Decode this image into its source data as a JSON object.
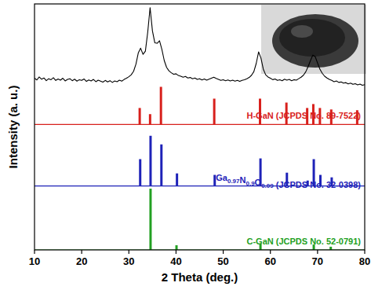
{
  "chart_data": {
    "type": "line",
    "x_label": "2 Theta (deg.)",
    "y_label": "Intensity (a. u.)",
    "xlim": [
      10,
      80
    ],
    "xticks": [
      10,
      20,
      30,
      40,
      50,
      60,
      70,
      80
    ],
    "ylim": [
      0,
      100
    ],
    "tick_labels": "x",
    "series": [
      {
        "type": "line",
        "color": "#000000",
        "x": [
          10,
          10.5,
          11,
          11.5,
          12,
          12.5,
          13,
          13.5,
          14,
          14.5,
          15,
          15.5,
          16,
          16.5,
          17,
          17.5,
          18,
          18.5,
          19,
          19.5,
          20,
          20.5,
          21,
          21.5,
          22,
          22.5,
          23,
          23.5,
          24,
          24.5,
          25,
          25.5,
          26,
          26.5,
          27,
          27.5,
          28,
          28.5,
          29,
          29.5,
          30,
          30.5,
          31,
          31.5,
          32,
          32.5,
          33,
          33.5,
          34,
          34.5,
          35,
          35.5,
          36,
          36.5,
          37,
          37.5,
          38,
          38.5,
          39,
          39.5,
          40,
          40.5,
          41,
          41.5,
          42,
          42.5,
          43,
          43.5,
          44,
          44.5,
          45,
          45.5,
          46,
          46.5,
          47,
          47.5,
          48,
          48.5,
          49,
          49.5,
          50,
          50.5,
          51,
          51.5,
          52,
          52.5,
          53,
          53.5,
          54,
          54.5,
          55,
          55.5,
          56,
          56.5,
          57,
          57.5,
          58,
          58.5,
          59,
          59.5,
          60,
          60.5,
          61,
          61.5,
          62,
          62.5,
          63,
          63.5,
          64,
          64.5,
          65,
          65.5,
          66,
          66.5,
          67,
          67.5,
          68,
          68.5,
          69,
          69.5,
          70,
          70.5,
          71,
          71.5,
          72,
          72.5,
          73,
          73.5,
          74,
          74.5,
          75,
          75.5,
          76,
          76.5,
          77,
          77.5,
          78,
          78.5,
          79,
          79.5,
          80
        ],
        "values": [
          69.8,
          69.1,
          70.3,
          69.4,
          69.9,
          68.8,
          69.6,
          69.2,
          70.0,
          68.9,
          69.5,
          69.0,
          69.8,
          68.7,
          69.3,
          69.6,
          68.8,
          69.4,
          68.6,
          69.2,
          68.9,
          69.5,
          68.5,
          69.1,
          68.7,
          69.3,
          68.4,
          69.0,
          68.6,
          68.2,
          68.9,
          68.3,
          68.8,
          68.1,
          68.7,
          68.4,
          69.0,
          68.6,
          69.3,
          69.8,
          70.4,
          71.2,
          72.6,
          75.5,
          80.1,
          82.0,
          79.5,
          80.8,
          88.5,
          98.5,
          89.0,
          84.2,
          84.0,
          85.0,
          81.5,
          77.0,
          74.2,
          72.8,
          72.0,
          71.4,
          71.6,
          70.9,
          70.6,
          70.2,
          70.5,
          69.9,
          70.1,
          69.6,
          69.9,
          69.3,
          69.6,
          69.1,
          69.5,
          69.0,
          69.4,
          69.8,
          70.2,
          69.7,
          69.3,
          68.9,
          69.2,
          68.8,
          69.1,
          68.7,
          69.0,
          68.6,
          68.9,
          68.5,
          68.9,
          69.2,
          69.6,
          70.1,
          71.0,
          72.5,
          75.8,
          80.5,
          78.0,
          73.5,
          71.2,
          70.3,
          69.8,
          69.2,
          69.5,
          68.9,
          69.2,
          68.8,
          69.4,
          69.0,
          69.3,
          68.8,
          69.2,
          69.0,
          69.6,
          70.2,
          71.0,
          72.4,
          74.5,
          77.0,
          79.2,
          78.6,
          76.0,
          73.5,
          71.8,
          70.6,
          69.9,
          69.3,
          68.9,
          68.4,
          68.7,
          68.1,
          68.3,
          67.8,
          68.0,
          67.5,
          67.8,
          67.3,
          67.6,
          67.1,
          67.4,
          66.9,
          67.2
        ]
      },
      {
        "name": "H-GaN (JCPDS No. 89-7522)",
        "type": "bar",
        "color": "#d8201c",
        "baseline": 51,
        "x": [
          32.3,
          34.5,
          36.8,
          48.1,
          57.8,
          63.4,
          67.8,
          69.1,
          70.5,
          72.9,
          78.4
        ],
        "values": [
          6.7,
          4.2,
          15.3,
          10.5,
          10.5,
          8.9,
          6.7,
          8.3,
          6.7,
          6.1,
          5.8
        ]
      },
      {
        "name": "Ga0.97N0.9O0.09 (JCPDS No. 32-0398)",
        "type": "bar",
        "color": "#1e22b8",
        "baseline": 26,
        "x": [
          32.4,
          34.6,
          36.9,
          40.2,
          48.2,
          57.9,
          63.5,
          67.9,
          69.2,
          70.6,
          73.0
        ],
        "values": [
          10.9,
          20.4,
          16.9,
          5.1,
          4.5,
          11.2,
          5.4,
          2.2,
          10.9,
          4.5,
          3.5
        ]
      },
      {
        "name": "C-GaN (JCPDS No. 52-0791)",
        "type": "bar",
        "color": "#22a022",
        "baseline": 0,
        "x": [
          34.6,
          40.1,
          57.9,
          69.2,
          72.8
        ],
        "values": [
          24.9,
          1.9,
          2.6,
          2.2,
          1.3
        ]
      }
    ]
  }
}
